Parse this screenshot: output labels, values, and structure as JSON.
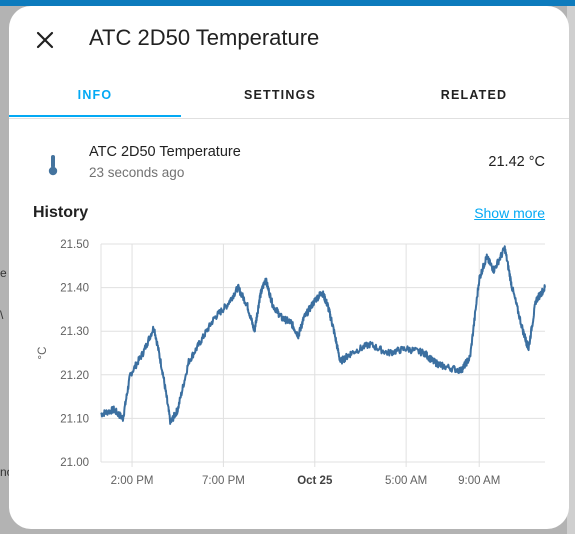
{
  "backdrop": {
    "fragments": [
      "e",
      "\\",
      "no"
    ]
  },
  "dialog": {
    "title": "ATC 2D50 Temperature",
    "close_icon": "close-icon",
    "tabs": [
      {
        "label": "INFO",
        "active": true
      },
      {
        "label": "SETTINGS",
        "active": false
      },
      {
        "label": "RELATED",
        "active": false
      }
    ],
    "entity": {
      "icon": "thermometer-icon",
      "name": "ATC 2D50 Temperature",
      "last_changed": "23 seconds ago",
      "state": "21.42 °C"
    },
    "history": {
      "title": "History",
      "show_more": "Show more"
    }
  },
  "colors": {
    "accent": "#03a9f4",
    "line": "#3b6fa0",
    "grid": "#e0e0e0"
  },
  "chart_data": {
    "type": "line",
    "ylabel": "°C",
    "ylim": [
      21.0,
      21.5
    ],
    "yticks": [
      "21.50",
      "21.40",
      "21.30",
      "21.20",
      "21.10",
      "21.00"
    ],
    "x_range_hours": [
      12.3,
      36.6
    ],
    "xticks": [
      {
        "label": "2:00 PM",
        "hour": 14,
        "bold": false
      },
      {
        "label": "7:00 PM",
        "hour": 19,
        "bold": false
      },
      {
        "label": "Oct 25",
        "hour": 24,
        "bold": true
      },
      {
        "label": "5:00 AM",
        "hour": 29,
        "bold": false
      },
      {
        "label": "9:00 AM",
        "hour": 33,
        "bold": false
      }
    ],
    "series": [
      {
        "name": "",
        "points": [
          [
            12.3,
            21.11
          ],
          [
            13.0,
            21.12
          ],
          [
            13.5,
            21.1
          ],
          [
            13.9,
            21.2
          ],
          [
            14.6,
            21.25
          ],
          [
            15.2,
            21.31
          ],
          [
            15.7,
            21.2
          ],
          [
            16.1,
            21.09
          ],
          [
            16.5,
            21.12
          ],
          [
            17.1,
            21.23
          ],
          [
            17.8,
            21.28
          ],
          [
            18.5,
            21.33
          ],
          [
            19.2,
            21.36
          ],
          [
            19.8,
            21.4
          ],
          [
            20.3,
            21.36
          ],
          [
            20.7,
            21.3
          ],
          [
            21.0,
            21.38
          ],
          [
            21.3,
            21.42
          ],
          [
            21.7,
            21.36
          ],
          [
            22.2,
            21.33
          ],
          [
            22.7,
            21.32
          ],
          [
            23.1,
            21.29
          ],
          [
            23.4,
            21.33
          ],
          [
            24.0,
            21.37
          ],
          [
            24.4,
            21.39
          ],
          [
            24.7,
            21.36
          ],
          [
            25.0,
            21.31
          ],
          [
            25.4,
            21.23
          ],
          [
            26.0,
            21.25
          ],
          [
            27.0,
            21.27
          ],
          [
            28.0,
            21.25
          ],
          [
            29.0,
            21.26
          ],
          [
            30.0,
            21.25
          ],
          [
            30.5,
            21.23
          ],
          [
            31.0,
            21.22
          ],
          [
            32.0,
            21.21
          ],
          [
            32.5,
            21.24
          ],
          [
            33.0,
            21.42
          ],
          [
            33.4,
            21.47
          ],
          [
            33.8,
            21.44
          ],
          [
            34.4,
            21.49
          ],
          [
            34.8,
            21.4
          ],
          [
            35.4,
            21.3
          ],
          [
            35.7,
            21.26
          ],
          [
            36.1,
            21.37
          ],
          [
            36.6,
            21.4
          ]
        ]
      }
    ]
  }
}
